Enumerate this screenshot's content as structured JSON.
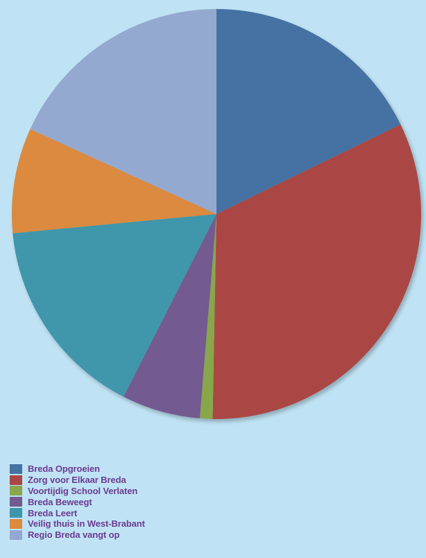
{
  "chart_data": {
    "type": "pie",
    "title": "",
    "start_angle_deg": 0,
    "direction": "clockwise",
    "slices": [
      {
        "label": "Breda Opgroeien",
        "value": 17.8,
        "color": "#4472a2"
      },
      {
        "label": "Zorg voor Elkaar Breda",
        "value": 32.5,
        "color": "#aa4745"
      },
      {
        "label": "Voortijdig School Verlaten",
        "value": 1.0,
        "color": "#89a64b"
      },
      {
        "label": "Breda Beweegt",
        "value": 6.2,
        "color": "#735a90"
      },
      {
        "label": "Breda Leert",
        "value": 16.0,
        "color": "#3f96aa"
      },
      {
        "label": "Veilig thuis in West-Brabant",
        "value": 8.3,
        "color": "#db8a3f"
      },
      {
        "label": "Regio Breda vangt op",
        "value": 18.2,
        "color": "#94a9cf"
      }
    ],
    "legend": {
      "position": "bottom-left"
    }
  }
}
